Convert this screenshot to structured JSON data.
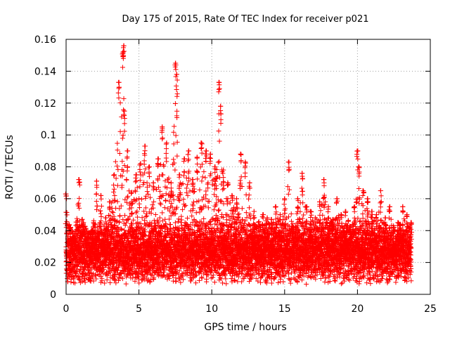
{
  "chart_data": {
    "type": "scatter",
    "title": "Day 175 of 2015, Rate Of TEC Index for receiver p021",
    "xlabel": "GPS time / hours",
    "ylabel": "ROTI / TECUs",
    "xlim": [
      0,
      25
    ],
    "ylim": [
      0,
      0.16
    ],
    "xticks": [
      0,
      5,
      10,
      15,
      20,
      25
    ],
    "yticks": [
      0,
      0.02,
      0.04,
      0.06,
      0.08,
      0.1,
      0.12,
      0.14,
      0.16
    ],
    "xtick_labels": [
      "0",
      "5",
      "10",
      "15",
      "20",
      "25"
    ],
    "ytick_labels": [
      "0",
      "0.02",
      "0.04",
      "0.06",
      "0.08",
      "0.1",
      "0.12",
      "0.14",
      "0.16"
    ],
    "grid": true,
    "marker": "+",
    "color": "#ff0000",
    "series": [
      {
        "name": "ROTI",
        "x": [
          0.0,
          0.3,
          0.6,
          0.9,
          1.2,
          1.5,
          1.8,
          2.1,
          2.4,
          2.7,
          3.0,
          3.3,
          3.6,
          3.9,
          3.95,
          4.0,
          4.2,
          4.5,
          4.8,
          5.1,
          5.4,
          5.7,
          6.0,
          6.3,
          6.6,
          6.9,
          7.2,
          7.5,
          7.6,
          7.8,
          8.1,
          8.4,
          8.7,
          9.0,
          9.3,
          9.6,
          9.9,
          10.2,
          10.5,
          10.6,
          10.8,
          11.1,
          11.4,
          11.7,
          12.0,
          12.3,
          12.6,
          12.9,
          13.2,
          13.5,
          13.8,
          14.1,
          14.4,
          14.7,
          15.0,
          15.3,
          15.6,
          15.9,
          16.2,
          16.5,
          16.8,
          17.1,
          17.4,
          17.7,
          18.0,
          18.3,
          18.6,
          18.9,
          19.2,
          19.5,
          19.8,
          20.0,
          20.1,
          20.4,
          20.7,
          21.0,
          21.3,
          21.6,
          21.9,
          22.2,
          22.5,
          22.8,
          23.1,
          23.4,
          23.7
        ],
        "y": [
          0.063,
          0.042,
          0.035,
          0.072,
          0.045,
          0.038,
          0.04,
          0.071,
          0.062,
          0.048,
          0.058,
          0.075,
          0.133,
          0.152,
          0.156,
          0.115,
          0.09,
          0.064,
          0.075,
          0.082,
          0.093,
          0.08,
          0.07,
          0.085,
          0.105,
          0.095,
          0.07,
          0.145,
          0.138,
          0.075,
          0.085,
          0.09,
          0.072,
          0.086,
          0.095,
          0.09,
          0.088,
          0.08,
          0.133,
          0.118,
          0.078,
          0.07,
          0.062,
          0.06,
          0.088,
          0.083,
          0.07,
          0.052,
          0.045,
          0.05,
          0.048,
          0.047,
          0.055,
          0.05,
          0.06,
          0.083,
          0.042,
          0.06,
          0.076,
          0.055,
          0.052,
          0.048,
          0.058,
          0.072,
          0.055,
          0.047,
          0.06,
          0.05,
          0.052,
          0.042,
          0.055,
          0.09,
          0.08,
          0.065,
          0.06,
          0.052,
          0.05,
          0.065,
          0.048,
          0.055,
          0.042,
          0.045,
          0.055,
          0.05,
          0.045
        ]
      }
    ]
  }
}
